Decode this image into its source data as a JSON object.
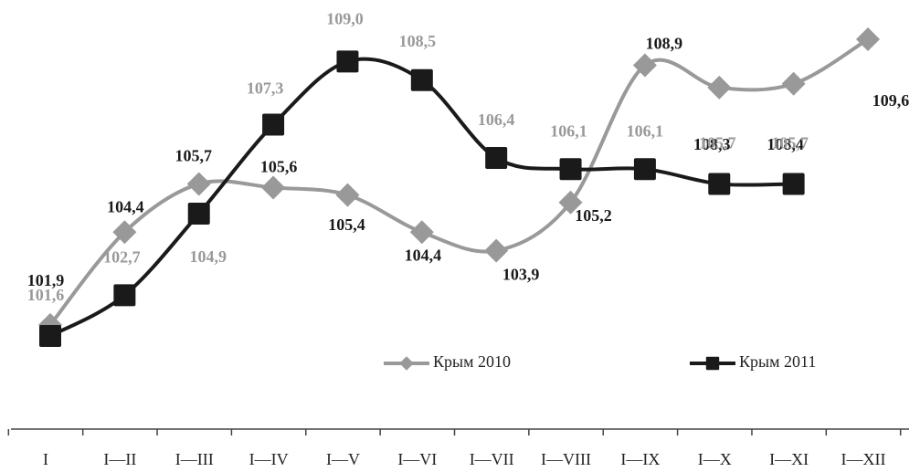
{
  "chart_data": {
    "type": "line",
    "categories": [
      "I",
      "I—II",
      "I—III",
      "I—IV",
      "I—V",
      "I—VI",
      "I—VII",
      "I—VIII",
      "I—IX",
      "I—X",
      "I—XI",
      "I—XII"
    ],
    "series": [
      {
        "name": "Крым 2010",
        "color": "#999999",
        "label_color": "#1a1a1a",
        "marker": "diamond",
        "values": [
          101.9,
          104.4,
          105.7,
          105.6,
          105.4,
          104.4,
          103.9,
          105.2,
          108.9,
          108.3,
          108.4,
          109.6
        ],
        "value_labels": [
          "101,9",
          "104,4",
          "105,7",
          "105,6",
          "105,4",
          "104,4",
          "103,9",
          "105,2",
          "108,9",
          "108,3",
          "108,4",
          "109,6"
        ]
      },
      {
        "name": "Крым 2011",
        "color": "#1a1a1a",
        "label_color": "#999999",
        "marker": "square",
        "values": [
          101.6,
          102.7,
          104.9,
          107.3,
          109.0,
          108.5,
          106.4,
          106.1,
          106.1,
          105.7,
          105.7,
          null
        ],
        "value_labels": [
          "101,6",
          "102,7",
          "104,9",
          "107,3",
          "109,0",
          "108,5",
          "106,4",
          "106,1",
          "106,1",
          "105,7",
          "105,7",
          null
        ]
      }
    ]
  }
}
